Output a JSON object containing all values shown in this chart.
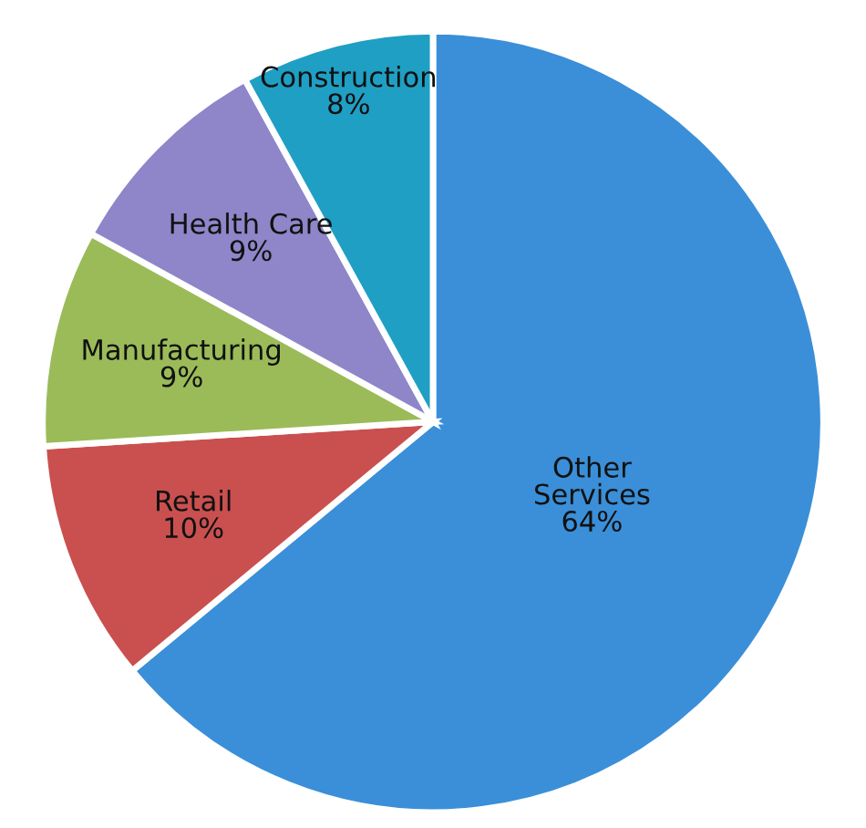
{
  "chart_data": {
    "type": "pie",
    "categories": [
      "Other Services",
      "Retail",
      "Manufacturing",
      "Health Care",
      "Construction"
    ],
    "values": [
      64,
      10,
      9,
      9,
      8
    ],
    "colors": [
      "#3a8fd8",
      "#c9504f",
      "#9bbb59",
      "#8e86c9",
      "#1f9fc4"
    ],
    "value_labels": [
      "64%",
      "10%",
      "9%",
      "9%",
      "8%"
    ]
  }
}
